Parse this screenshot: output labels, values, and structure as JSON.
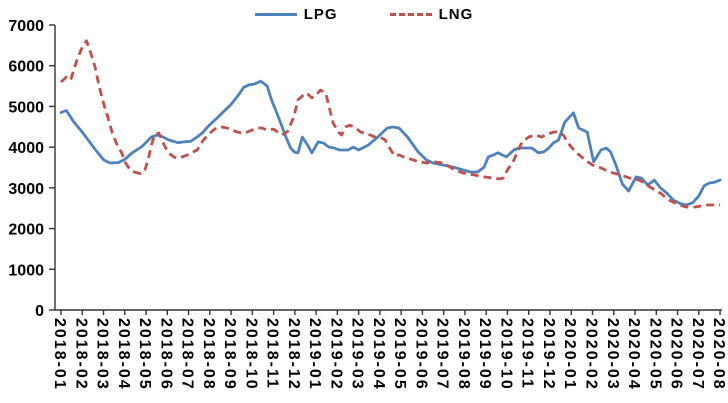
{
  "colors": {
    "lpg_line": "#4F81BD",
    "lng_line": "#C0504D",
    "axis": "#333333",
    "text": "#000000",
    "background": "#ffffff"
  },
  "legend": {
    "items": [
      {
        "label": "LPG",
        "color": "#4F81BD",
        "line_style": "solid"
      },
      {
        "label": "LNG",
        "color": "#C0504D",
        "line_style": "dashed"
      }
    ],
    "position": "top-center"
  },
  "chart_data": {
    "type": "line",
    "title": "",
    "xlabel": "",
    "ylabel": "",
    "grid": "off",
    "legend_position": "top-center",
    "y_axis": {
      "min": 0,
      "max": 7000,
      "step": 1000
    },
    "y_tick_labels": [
      "0",
      "1000",
      "2000",
      "3000",
      "4000",
      "5000",
      "6000",
      "7000"
    ],
    "x_categories": [
      "2018-01",
      "2018-02",
      "2018-03",
      "2018-04",
      "2018-05",
      "2018-06",
      "2018-07",
      "2018-08",
      "2018-09",
      "2018-10",
      "2018-11",
      "2018-12",
      "2019-01",
      "2019-02",
      "2019-03",
      "2019-04",
      "2019-05",
      "2019-06",
      "2019-07",
      "2019-08",
      "2019-09",
      "2019-10",
      "2019-11",
      "2019-12",
      "2020-01",
      "2020-02",
      "2020-03",
      "2020-04",
      "2020-05",
      "2020-06",
      "2020-07",
      "2020-08"
    ],
    "x_unit": "month_index_from_2018-01",
    "series": [
      {
        "name": "LPG",
        "color": "#4F81BD",
        "style": "solid",
        "stroke_width": 2.8,
        "points": [
          [
            0,
            4850
          ],
          [
            0.25,
            4900
          ],
          [
            0.6,
            4620
          ],
          [
            1.1,
            4300
          ],
          [
            1.6,
            3950
          ],
          [
            2,
            3690
          ],
          [
            2.3,
            3610
          ],
          [
            2.7,
            3620
          ],
          [
            3,
            3700
          ],
          [
            3.35,
            3860
          ],
          [
            3.8,
            4010
          ],
          [
            4.25,
            4250
          ],
          [
            4.55,
            4300
          ],
          [
            4.8,
            4250
          ],
          [
            5.1,
            4170
          ],
          [
            5.5,
            4110
          ],
          [
            5.8,
            4130
          ],
          [
            6.1,
            4140
          ],
          [
            6.4,
            4250
          ],
          [
            6.65,
            4350
          ],
          [
            6.9,
            4500
          ],
          [
            7.1,
            4600
          ],
          [
            7.35,
            4720
          ],
          [
            7.7,
            4900
          ],
          [
            8,
            5050
          ],
          [
            8.35,
            5280
          ],
          [
            8.6,
            5470
          ],
          [
            8.85,
            5530
          ],
          [
            9.1,
            5550
          ],
          [
            9.4,
            5620
          ],
          [
            9.7,
            5500
          ],
          [
            9.9,
            5160
          ],
          [
            10.15,
            4840
          ],
          [
            10.4,
            4500
          ],
          [
            10.6,
            4220
          ],
          [
            10.8,
            3980
          ],
          [
            11,
            3870
          ],
          [
            11.15,
            3860
          ],
          [
            11.35,
            4250
          ],
          [
            11.6,
            4050
          ],
          [
            11.8,
            3860
          ],
          [
            12.1,
            4130
          ],
          [
            12.35,
            4100
          ],
          [
            12.6,
            4000
          ],
          [
            12.85,
            3980
          ],
          [
            13.1,
            3930
          ],
          [
            13.5,
            3930
          ],
          [
            13.75,
            4000
          ],
          [
            14,
            3930
          ],
          [
            14.45,
            4050
          ],
          [
            14.9,
            4250
          ],
          [
            15.35,
            4470
          ],
          [
            15.6,
            4495
          ],
          [
            15.9,
            4470
          ],
          [
            16.3,
            4250
          ],
          [
            16.8,
            3880
          ],
          [
            17.2,
            3680
          ],
          [
            17.5,
            3610
          ],
          [
            18,
            3560
          ],
          [
            18.45,
            3510
          ],
          [
            18.9,
            3440
          ],
          [
            19.25,
            3390
          ],
          [
            19.6,
            3390
          ],
          [
            19.9,
            3510
          ],
          [
            20.1,
            3760
          ],
          [
            20.35,
            3810
          ],
          [
            20.55,
            3860
          ],
          [
            20.75,
            3810
          ],
          [
            20.95,
            3760
          ],
          [
            21.3,
            3930
          ],
          [
            21.55,
            3980
          ],
          [
            22.15,
            3980
          ],
          [
            22.45,
            3860
          ],
          [
            22.7,
            3880
          ],
          [
            22.95,
            3980
          ],
          [
            23.15,
            4100
          ],
          [
            23.4,
            4175
          ],
          [
            23.7,
            4620
          ],
          [
            24.1,
            4840
          ],
          [
            24.35,
            4470
          ],
          [
            24.55,
            4420
          ],
          [
            24.75,
            4370
          ],
          [
            25.05,
            3640
          ],
          [
            25.4,
            3930
          ],
          [
            25.65,
            3980
          ],
          [
            25.85,
            3880
          ],
          [
            26.1,
            3560
          ],
          [
            26.4,
            3100
          ],
          [
            26.7,
            2920
          ],
          [
            27.05,
            3270
          ],
          [
            27.3,
            3240
          ],
          [
            27.6,
            3070
          ],
          [
            27.9,
            3190
          ],
          [
            28.2,
            3000
          ],
          [
            28.5,
            2870
          ],
          [
            28.8,
            2700
          ],
          [
            29.1,
            2620
          ],
          [
            29.4,
            2580
          ],
          [
            29.7,
            2630
          ],
          [
            30,
            2800
          ],
          [
            30.25,
            3050
          ],
          [
            30.5,
            3120
          ],
          [
            30.75,
            3140
          ],
          [
            31,
            3190
          ]
        ]
      },
      {
        "name": "LNG",
        "color": "#C0504D",
        "style": "dashed",
        "stroke_width": 2.8,
        "dasharray": "8 5",
        "points": [
          [
            0,
            5600
          ],
          [
            0.25,
            5720
          ],
          [
            0.45,
            5650
          ],
          [
            0.75,
            6140
          ],
          [
            1,
            6460
          ],
          [
            1.2,
            6610
          ],
          [
            1.4,
            6310
          ],
          [
            1.6,
            5970
          ],
          [
            1.8,
            5480
          ],
          [
            2,
            5080
          ],
          [
            2.2,
            4740
          ],
          [
            2.4,
            4370
          ],
          [
            2.6,
            4100
          ],
          [
            2.85,
            3860
          ],
          [
            3.05,
            3600
          ],
          [
            3.25,
            3440
          ],
          [
            3.5,
            3380
          ],
          [
            3.75,
            3350
          ],
          [
            3.95,
            3450
          ],
          [
            4.1,
            3700
          ],
          [
            4.25,
            4050
          ],
          [
            4.4,
            4300
          ],
          [
            4.6,
            4350
          ],
          [
            4.85,
            4050
          ],
          [
            5.05,
            3860
          ],
          [
            5.3,
            3760
          ],
          [
            5.45,
            3730
          ],
          [
            5.7,
            3760
          ],
          [
            5.95,
            3810
          ],
          [
            6.15,
            3860
          ],
          [
            6.4,
            3930
          ],
          [
            6.7,
            4175
          ],
          [
            7.05,
            4370
          ],
          [
            7.3,
            4470
          ],
          [
            7.55,
            4495
          ],
          [
            7.8,
            4470
          ],
          [
            8.05,
            4420
          ],
          [
            8.3,
            4370
          ],
          [
            8.5,
            4350
          ],
          [
            8.75,
            4370
          ],
          [
            9,
            4420
          ],
          [
            9.25,
            4470
          ],
          [
            9.45,
            4470
          ],
          [
            9.7,
            4420
          ],
          [
            10,
            4440
          ],
          [
            10.2,
            4370
          ],
          [
            10.4,
            4300
          ],
          [
            10.65,
            4380
          ],
          [
            10.95,
            4740
          ],
          [
            11.15,
            5160
          ],
          [
            11.4,
            5280
          ],
          [
            11.55,
            5330
          ],
          [
            11.8,
            5210
          ],
          [
            12,
            5280
          ],
          [
            12.2,
            5400
          ],
          [
            12.45,
            5330
          ],
          [
            12.65,
            4910
          ],
          [
            12.8,
            4590
          ],
          [
            13.05,
            4370
          ],
          [
            13.2,
            4300
          ],
          [
            13.4,
            4500
          ],
          [
            13.6,
            4540
          ],
          [
            13.85,
            4470
          ],
          [
            14.1,
            4370
          ],
          [
            14.45,
            4320
          ],
          [
            14.75,
            4250
          ],
          [
            15,
            4250
          ],
          [
            15.25,
            4175
          ],
          [
            15.45,
            3980
          ],
          [
            15.7,
            3780
          ],
          [
            15.9,
            3810
          ],
          [
            16.1,
            3760
          ],
          [
            16.3,
            3730
          ],
          [
            16.6,
            3680
          ],
          [
            16.8,
            3640
          ],
          [
            17.2,
            3610
          ],
          [
            17.5,
            3640
          ],
          [
            18,
            3610
          ],
          [
            18.45,
            3460
          ],
          [
            18.9,
            3365
          ],
          [
            19.4,
            3320
          ],
          [
            19.9,
            3270
          ],
          [
            20.3,
            3240
          ],
          [
            20.6,
            3220
          ],
          [
            20.8,
            3240
          ],
          [
            21,
            3440
          ],
          [
            21.3,
            3680
          ],
          [
            21.5,
            3930
          ],
          [
            21.7,
            4130
          ],
          [
            22,
            4250
          ],
          [
            22.3,
            4300
          ],
          [
            22.6,
            4250
          ],
          [
            22.9,
            4330
          ],
          [
            23.2,
            4370
          ],
          [
            23.4,
            4390
          ],
          [
            23.65,
            4280
          ],
          [
            23.85,
            4100
          ],
          [
            24.2,
            3880
          ],
          [
            24.65,
            3690
          ],
          [
            25,
            3560
          ],
          [
            25.4,
            3490
          ],
          [
            25.8,
            3390
          ],
          [
            26.3,
            3320
          ],
          [
            26.75,
            3240
          ],
          [
            27.2,
            3190
          ],
          [
            27.7,
            3020
          ],
          [
            28.2,
            2870
          ],
          [
            28.6,
            2700
          ],
          [
            29.1,
            2580
          ],
          [
            29.4,
            2530
          ],
          [
            29.85,
            2530
          ],
          [
            30.3,
            2580
          ],
          [
            30.8,
            2580
          ],
          [
            31,
            2580
          ]
        ]
      }
    ]
  }
}
